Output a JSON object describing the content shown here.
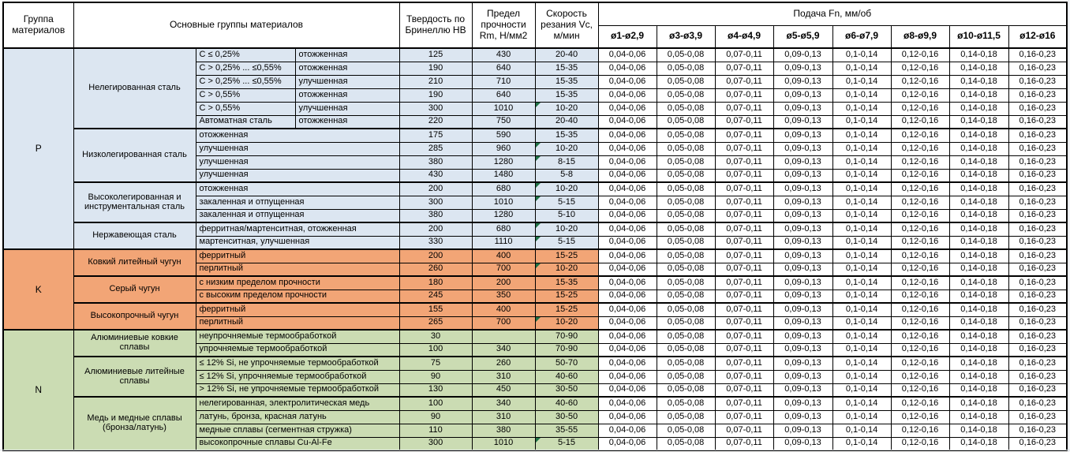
{
  "header": {
    "col_group": "Группа материалов",
    "col_main_groups": "Основные группы материалов",
    "col_hardness": "Твердость по Бринеллю HB",
    "col_strength": "Предел прочности Rm, Н/мм2",
    "col_speed": "Скорость резания Vc, м/мин",
    "feed_title": "Подача Fn, мм/об",
    "feed_columns": [
      "ø1-ø2,9",
      "ø3-ø3,9",
      "ø4-ø4,9",
      "ø5-ø5,9",
      "ø6-ø7,9",
      "ø8-ø9,9",
      "ø10-ø11,5",
      "ø12-ø16"
    ]
  },
  "feed_values": [
    "0,04-0,06",
    "0,05-0,08",
    "0,07-0,11",
    "0,09-0,13",
    "0,1-0,14",
    "0,12-0,16",
    "0,14-0,18",
    "0,16-0,23"
  ],
  "colors": {
    "group_P": "#dce6f1",
    "group_K": "#f2a576",
    "group_N": "#cbdcb3",
    "error_marker": "#1e7145"
  },
  "groups": [
    {
      "letter": "P",
      "families": [
        {
          "name": "Нелегированная сталь",
          "rows": [
            {
              "desc": "C ≤ 0,25%",
              "state": "отожженная",
              "hb": "125",
              "rm": "430",
              "vc": "20-40",
              "marker": false
            },
            {
              "desc": "C > 0,25% ... ≤0,55%",
              "state": "отожженная",
              "hb": "190",
              "rm": "640",
              "vc": "15-35",
              "marker": false
            },
            {
              "desc": "C > 0,25% ... ≤0,55%",
              "state": "улучшенная",
              "hb": "210",
              "rm": "710",
              "vc": "15-35",
              "marker": false
            },
            {
              "desc": "C > 0,55%",
              "state": "отожженная",
              "hb": "190",
              "rm": "640",
              "vc": "15-35",
              "marker": false
            },
            {
              "desc": "C > 0,55%",
              "state": "улучшенная",
              "hb": "300",
              "rm": "1010",
              "vc": "10-20",
              "marker": true
            },
            {
              "desc": "Автоматная сталь",
              "state": "отожженная",
              "hb": "220",
              "rm": "750",
              "vc": "20-40",
              "marker": false
            }
          ]
        },
        {
          "name": "Низколегированная сталь",
          "rows": [
            {
              "desc": "отожженная",
              "state": null,
              "hb": "175",
              "rm": "590",
              "vc": "15-35",
              "marker": false
            },
            {
              "desc": "улучшенная",
              "state": null,
              "hb": "285",
              "rm": "960",
              "vc": "10-20",
              "marker": true
            },
            {
              "desc": "улучшенная",
              "state": null,
              "hb": "380",
              "rm": "1280",
              "vc": "8-15",
              "marker": true
            },
            {
              "desc": "улучшенная",
              "state": null,
              "hb": "430",
              "rm": "1480",
              "vc": "5-8",
              "marker": false
            }
          ]
        },
        {
          "name": "Высоколегированная и инструментальная сталь",
          "rows": [
            {
              "desc": "отожженная",
              "state": null,
              "hb": "200",
              "rm": "680",
              "vc": "10-20",
              "marker": true
            },
            {
              "desc": "закаленная и отпущенная",
              "state": null,
              "hb": "300",
              "rm": "1010",
              "vc": "5-15",
              "marker": true
            },
            {
              "desc": "закаленная и отпущенная",
              "state": null,
              "hb": "380",
              "rm": "1280",
              "vc": "5-10",
              "marker": false
            }
          ]
        },
        {
          "name": "Нержавеющая сталь",
          "rows": [
            {
              "desc": "ферритная/мартенситная, отожженная",
              "state": null,
              "hb": "200",
              "rm": "680",
              "vc": "10-20",
              "marker": true
            },
            {
              "desc": "мартенситная, улучшенная",
              "state": null,
              "hb": "330",
              "rm": "1110",
              "vc": "5-15",
              "marker": true
            }
          ]
        }
      ]
    },
    {
      "letter": "K",
      "families": [
        {
          "name": "Ковкий литейный чугун",
          "rows": [
            {
              "desc": "ферритный",
              "state": null,
              "hb": "200",
              "rm": "400",
              "vc": "15-25",
              "marker": false
            },
            {
              "desc": "перлитный",
              "state": null,
              "hb": "260",
              "rm": "700",
              "vc": "10-20",
              "marker": true
            }
          ]
        },
        {
          "name": "Серый чугун",
          "rows": [
            {
              "desc": "с низким пределом прочности",
              "state": null,
              "hb": "180",
              "rm": "200",
              "vc": "15-35",
              "marker": false
            },
            {
              "desc": "с высоким пределом прочности",
              "state": null,
              "hb": "245",
              "rm": "350",
              "vc": "15-25",
              "marker": false
            }
          ]
        },
        {
          "name": "Высокопрочный чугун",
          "rows": [
            {
              "desc": "ферритный",
              "state": null,
              "hb": "155",
              "rm": "400",
              "vc": "15-25",
              "marker": false
            },
            {
              "desc": "перлитный",
              "state": null,
              "hb": "265",
              "rm": "700",
              "vc": "10-20",
              "marker": true
            }
          ]
        }
      ]
    },
    {
      "letter": "N",
      "families": [
        {
          "name": "Алюминиевые ковкие сплавы",
          "rows": [
            {
              "desc": "неупрочняемые термообработкой",
              "state": null,
              "hb": "30",
              "rm": "",
              "vc": "70-90",
              "marker": false
            },
            {
              "desc": "упрочняемые термообработкой",
              "state": null,
              "hb": "100",
              "rm": "340",
              "vc": "70-90",
              "marker": false
            }
          ]
        },
        {
          "name": "Алюминиевые литейные сплавы",
          "rows": [
            {
              "desc": "≤ 12% Si, не упрочняемые термообработкой",
              "state": null,
              "hb": "75",
              "rm": "260",
              "vc": "50-70",
              "marker": false
            },
            {
              "desc": "≤ 12% Si, упрочняемые термообработкой",
              "state": null,
              "hb": "90",
              "rm": "310",
              "vc": "40-60",
              "marker": false
            },
            {
              "desc": "> 12% Si, не упрочняемые термообработкой",
              "state": null,
              "hb": "130",
              "rm": "450",
              "vc": "30-50",
              "marker": false
            }
          ]
        },
        {
          "name": "Медь и медные сплавы (бронза/латунь)",
          "rows": [
            {
              "desc": "нелегированная, электролитическая медь",
              "state": null,
              "hb": "100",
              "rm": "340",
              "vc": "40-60",
              "marker": false
            },
            {
              "desc": "латунь, бронза, красная латунь",
              "state": null,
              "hb": "90",
              "rm": "310",
              "vc": "30-50",
              "marker": false
            },
            {
              "desc": "медные сплавы (сегментная стружка)",
              "state": null,
              "hb": "110",
              "rm": "380",
              "vc": "35-55",
              "marker": false
            },
            {
              "desc": "высокопрочные сплавы Cu-Al-Fe",
              "state": null,
              "hb": "300",
              "rm": "1010",
              "vc": "5-15",
              "marker": true
            }
          ]
        }
      ]
    }
  ]
}
